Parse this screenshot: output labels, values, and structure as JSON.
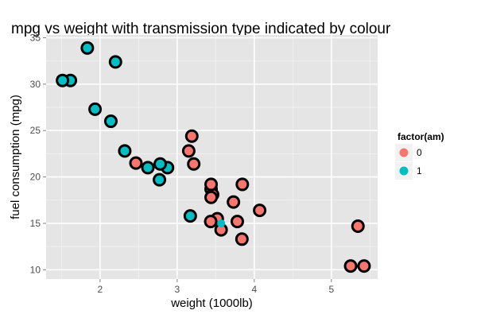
{
  "chart_data": {
    "type": "scatter",
    "title": "mpg vs weight with transmission type indicated by colour",
    "xlabel": "weight (1000lb)",
    "ylabel": "fuel consumption (mpg)",
    "xlim": [
      1.3,
      5.6
    ],
    "ylim": [
      9.0,
      35.3
    ],
    "x_ticks": [
      2,
      3,
      4,
      5
    ],
    "y_ticks": [
      10,
      15,
      20,
      25,
      30,
      35
    ],
    "grid": true,
    "legend": {
      "title": "factor(am)",
      "position": "right",
      "entries": [
        {
          "label": "0",
          "color": "#F8766D"
        },
        {
          "label": "1",
          "color": "#00BFC4"
        }
      ]
    },
    "series": [
      {
        "name": "0",
        "color": "#F8766D",
        "points": [
          {
            "x": 3.215,
            "y": 21.4
          },
          {
            "x": 3.44,
            "y": 18.7
          },
          {
            "x": 3.46,
            "y": 18.1
          },
          {
            "x": 3.57,
            "y": 14.3
          },
          {
            "x": 3.19,
            "y": 24.4
          },
          {
            "x": 3.15,
            "y": 22.8
          },
          {
            "x": 3.44,
            "y": 19.2
          },
          {
            "x": 3.44,
            "y": 17.8
          },
          {
            "x": 4.07,
            "y": 16.4
          },
          {
            "x": 3.73,
            "y": 17.3
          },
          {
            "x": 3.78,
            "y": 15.2
          },
          {
            "x": 5.25,
            "y": 10.4
          },
          {
            "x": 5.424,
            "y": 10.4
          },
          {
            "x": 5.345,
            "y": 14.7
          },
          {
            "x": 2.465,
            "y": 21.5
          },
          {
            "x": 3.52,
            "y": 15.5
          },
          {
            "x": 3.435,
            "y": 15.2
          },
          {
            "x": 3.84,
            "y": 13.3
          },
          {
            "x": 3.845,
            "y": 19.2
          }
        ]
      },
      {
        "name": "1",
        "color": "#00BFC4",
        "points": [
          {
            "x": 2.62,
            "y": 21.0
          },
          {
            "x": 2.875,
            "y": 21.0
          },
          {
            "x": 2.32,
            "y": 22.8
          },
          {
            "x": 2.2,
            "y": 32.4
          },
          {
            "x": 1.615,
            "y": 30.4
          },
          {
            "x": 1.835,
            "y": 33.9
          },
          {
            "x": 1.935,
            "y": 27.3
          },
          {
            "x": 2.14,
            "y": 26.0
          },
          {
            "x": 1.513,
            "y": 30.4
          },
          {
            "x": 3.17,
            "y": 15.8
          },
          {
            "x": 2.77,
            "y": 19.7
          },
          {
            "x": 2.78,
            "y": 21.4
          },
          {
            "x": 3.57,
            "y": 15.0,
            "no_outline": true
          }
        ]
      }
    ]
  }
}
